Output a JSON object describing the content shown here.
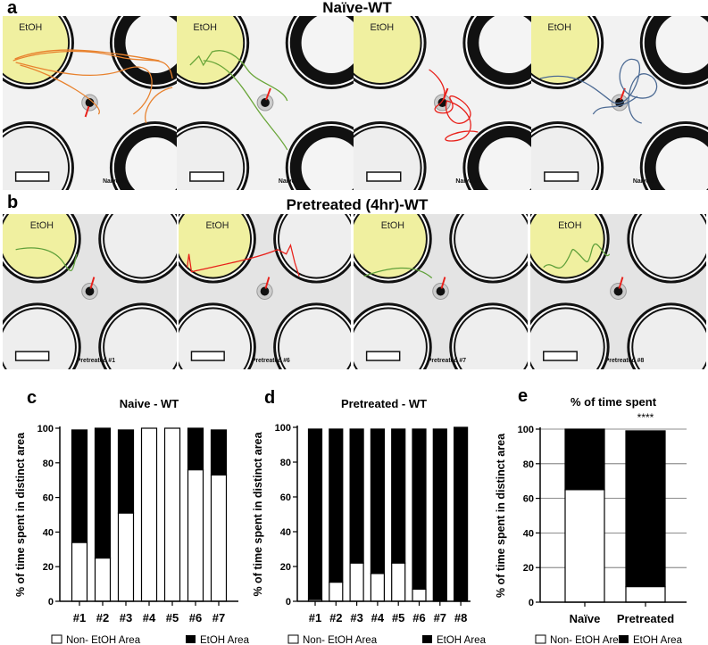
{
  "panel_a": {
    "letter": "a",
    "title": "Naïve-WT",
    "photos": [
      {
        "label": "Naive #1",
        "area_label": "EtOH",
        "track_color": "#e8822e"
      },
      {
        "label": "Naive #2",
        "area_label": "EtOH",
        "track_color": "#6aa63a"
      },
      {
        "label": "Naive #3",
        "area_label": "EtOH",
        "track_color": "#e8201a"
      },
      {
        "label": "Naive #7",
        "area_label": "EtOH",
        "track_color": "#4d6b94"
      }
    ]
  },
  "panel_b": {
    "letter": "b",
    "title": "Pretreated (4hr)-WT",
    "photos": [
      {
        "label": "Pretreated #1",
        "area_label": "EtOH",
        "track_color": "#5fa03a"
      },
      {
        "label": "Pretreated #6",
        "area_label": "EtOH",
        "track_color": "#e8201a"
      },
      {
        "label": "Pretreated #7",
        "area_label": "EtOH",
        "track_color": "#5fa03a"
      },
      {
        "label": "Pretreated #8",
        "area_label": "EtOH",
        "track_color": "#5fa03a"
      }
    ]
  },
  "colors": {
    "etoh_area": "#f0f0a0",
    "arrow": "#e8201a",
    "non_etoh_bar": "#ffffff",
    "etoh_bar": "#000000"
  },
  "chart_data": [
    {
      "letter": "c",
      "type": "bar",
      "stacked": true,
      "title": "Naive - WT",
      "ylabel": "% of time spent in distinct area",
      "ylim": [
        0,
        100
      ],
      "yticks": [
        "0",
        "20",
        "40",
        "60",
        "80",
        "100"
      ],
      "categories": [
        "#1",
        "#2",
        "#3",
        "#4",
        "#5",
        "#6",
        "#7"
      ],
      "series": [
        {
          "name": "Non- EtOH Area",
          "values": [
            34,
            25,
            51,
            100,
            100,
            76,
            73
          ]
        },
        {
          "name": "EtOH Area",
          "values": [
            65,
            75,
            48,
            0,
            0,
            24,
            26
          ]
        }
      ],
      "grid": false,
      "legend": "bottom"
    },
    {
      "letter": "d",
      "type": "bar",
      "stacked": true,
      "title": "Pretreated - WT",
      "ylabel": "% of time spent in distinct area",
      "ylim": [
        0,
        100
      ],
      "yticks": [
        "0",
        "20",
        "40",
        "60",
        "80",
        "100"
      ],
      "categories": [
        "#1",
        "#2",
        "#3",
        "#4",
        "#5",
        "#6",
        "#7",
        "#8"
      ],
      "series": [
        {
          "name": "Non- EtOH Area",
          "values": [
            1,
            11,
            22,
            16,
            22,
            7,
            0,
            0
          ]
        },
        {
          "name": "EtOH Area",
          "values": [
            98,
            88,
            77,
            83,
            77,
            92,
            99,
            100
          ]
        }
      ],
      "grid": false,
      "legend": "bottom"
    },
    {
      "letter": "e",
      "type": "bar",
      "stacked": true,
      "title": "% of time spent",
      "annotation": "****",
      "ylabel": "% of time spent in distinct area",
      "ylim": [
        0,
        100
      ],
      "yticks": [
        "0",
        "20",
        "40",
        "60",
        "80",
        "100"
      ],
      "categories": [
        "Naïve",
        "Pretreated"
      ],
      "series": [
        {
          "name": "Non- EtOH Area",
          "values": [
            65,
            9
          ]
        },
        {
          "name": "EtOH Area",
          "values": [
            35,
            90
          ]
        }
      ],
      "grid": true,
      "legend": "bottom"
    }
  ]
}
